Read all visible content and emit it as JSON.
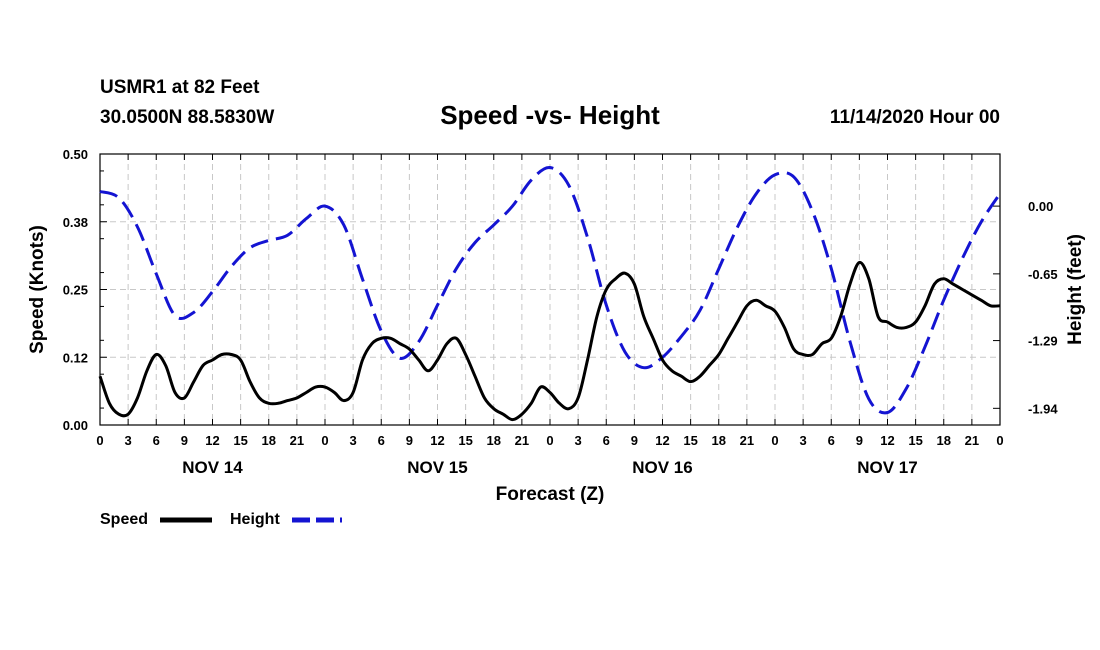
{
  "header": {
    "station": "USMR1 at 82 Feet",
    "coords": "30.0500N 88.5830W",
    "title": "Speed -vs- Height",
    "timestamp": "11/14/2020 Hour 00"
  },
  "chart_data": {
    "type": "line",
    "title": "Speed -vs- Height",
    "xlabel": "Forecast (Z)",
    "ylabel": "Speed (Knots)",
    "y2label": "Height (feet)",
    "xlim": [
      0,
      96
    ],
    "ylim": [
      0.0,
      0.5
    ],
    "y2lim": [
      -2.1,
      0.5
    ],
    "grid": true,
    "legend_position": "bottom-left",
    "yticks": [
      "0.00",
      "0.12",
      "0.25",
      "0.38",
      "0.50"
    ],
    "y2ticks": [
      {
        "value": 0.0,
        "label": "0.00"
      },
      {
        "value": -0.65,
        "label": "-0.65"
      },
      {
        "value": -1.29,
        "label": "-1.29"
      },
      {
        "value": -1.94,
        "label": "-1.94"
      }
    ],
    "xtick_labels": [
      "0",
      "3",
      "6",
      "9",
      "12",
      "15",
      "18",
      "21",
      "0",
      "3",
      "6",
      "9",
      "12",
      "15",
      "18",
      "21",
      "0",
      "3",
      "6",
      "9",
      "12",
      "15",
      "18",
      "21",
      "0",
      "3",
      "6",
      "9",
      "12",
      "15",
      "18",
      "21",
      "0"
    ],
    "day_labels": [
      "NOV 14",
      "NOV 15",
      "NOV 16",
      "NOV 17"
    ],
    "series": [
      {
        "name": "Speed",
        "color": "#000000",
        "dash": "solid",
        "axis": "left",
        "x": [
          0,
          1,
          2,
          3,
          4,
          5,
          6,
          7,
          8,
          9,
          10,
          11,
          12,
          13,
          14,
          15,
          16,
          17,
          18,
          19,
          20,
          21,
          22,
          23,
          24,
          25,
          26,
          27,
          28,
          29,
          30,
          31,
          32,
          33,
          34,
          35,
          36,
          37,
          38,
          39,
          40,
          41,
          42,
          43,
          44,
          45,
          46,
          47,
          48,
          49,
          50,
          51,
          52,
          53,
          54,
          55,
          56,
          57,
          58,
          59,
          60,
          61,
          62,
          63,
          64,
          65,
          66,
          67,
          68,
          69,
          70,
          71,
          72,
          73,
          74,
          75,
          76,
          77,
          78,
          79,
          80,
          81,
          82,
          83,
          84,
          85,
          86,
          87,
          88,
          89,
          90,
          91,
          92,
          93,
          94,
          95,
          96
        ],
        "values": [
          0.09,
          0.04,
          0.02,
          0.02,
          0.05,
          0.1,
          0.13,
          0.11,
          0.06,
          0.05,
          0.08,
          0.11,
          0.12,
          0.13,
          0.13,
          0.12,
          0.08,
          0.05,
          0.04,
          0.04,
          0.045,
          0.05,
          0.06,
          0.07,
          0.07,
          0.06,
          0.045,
          0.06,
          0.12,
          0.15,
          0.16,
          0.16,
          0.15,
          0.14,
          0.12,
          0.1,
          0.12,
          0.15,
          0.16,
          0.13,
          0.09,
          0.05,
          0.03,
          0.02,
          0.01,
          0.02,
          0.04,
          0.07,
          0.06,
          0.04,
          0.03,
          0.05,
          0.12,
          0.2,
          0.25,
          0.27,
          0.28,
          0.26,
          0.2,
          0.16,
          0.12,
          0.1,
          0.09,
          0.08,
          0.09,
          0.11,
          0.13,
          0.16,
          0.19,
          0.22,
          0.23,
          0.22,
          0.21,
          0.18,
          0.14,
          0.13,
          0.13,
          0.15,
          0.16,
          0.2,
          0.26,
          0.3,
          0.27,
          0.2,
          0.19,
          0.18,
          0.18,
          0.19,
          0.22,
          0.26,
          0.27,
          0.26,
          0.25,
          0.24,
          0.23,
          0.22,
          0.22
        ]
      },
      {
        "name": "Height",
        "color": "#1414d2",
        "dash": "dashed",
        "axis": "right",
        "x": [
          0,
          2,
          4,
          6,
          8,
          10,
          12,
          14,
          16,
          18,
          20,
          22,
          24,
          26,
          28,
          30,
          32,
          34,
          36,
          38,
          40,
          42,
          44,
          46,
          48,
          50,
          52,
          54,
          56,
          58,
          60,
          62,
          64,
          66,
          68,
          70,
          72,
          74,
          76,
          78,
          80,
          82,
          84,
          86,
          88,
          90,
          92,
          94,
          96
        ],
        "values": [
          0.14,
          0.08,
          -0.2,
          -0.65,
          -1.05,
          -1.02,
          -0.82,
          -0.58,
          -0.4,
          -0.33,
          -0.28,
          -0.12,
          0.0,
          -0.18,
          -0.7,
          -1.2,
          -1.46,
          -1.3,
          -0.95,
          -0.6,
          -0.35,
          -0.18,
          0.0,
          0.25,
          0.37,
          0.2,
          -0.3,
          -0.95,
          -1.4,
          -1.55,
          -1.45,
          -1.25,
          -1.0,
          -0.6,
          -0.2,
          0.12,
          0.3,
          0.28,
          -0.05,
          -0.6,
          -1.3,
          -1.85,
          -1.98,
          -1.75,
          -1.35,
          -0.9,
          -0.5,
          -0.15,
          0.12
        ]
      }
    ]
  }
}
